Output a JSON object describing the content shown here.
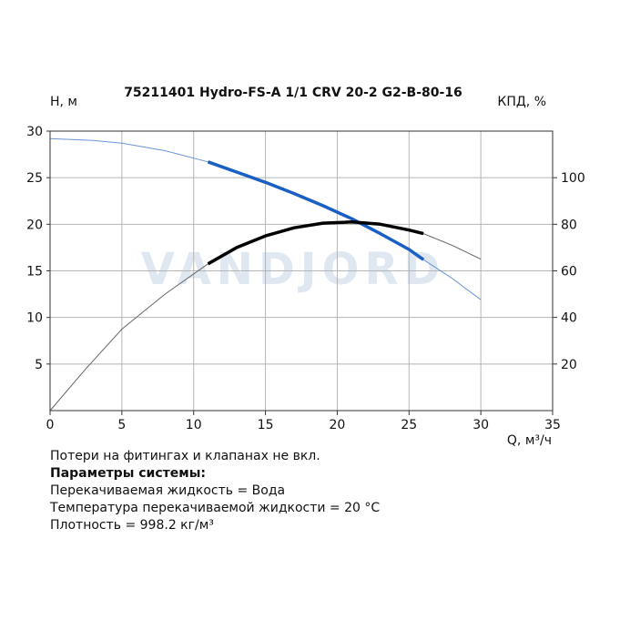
{
  "chart_data": {
    "type": "line",
    "title": "75211401 Hydro-FS-A 1/1 CRV 20-2 G2-B-80-16",
    "xlabel": "Q, м³/ч",
    "ylabel": "H, м",
    "y2label": "КПД, %",
    "watermark": "VANDJORD",
    "xlim": [
      0,
      35
    ],
    "ylim": [
      0,
      30
    ],
    "y2lim": [
      0,
      120
    ],
    "xticks": [
      "0",
      "5",
      "10",
      "15",
      "20",
      "25",
      "30",
      "35"
    ],
    "yticks": [
      "5",
      "10",
      "15",
      "20",
      "25",
      "30"
    ],
    "y2ticks": [
      "20",
      "40",
      "60",
      "80",
      "100"
    ],
    "grid": true,
    "series": [
      {
        "axis": "left",
        "color": "#1a5fc4",
        "x": [
          0,
          3,
          5,
          8,
          11,
          13,
          15,
          17,
          19,
          21,
          23,
          25,
          26,
          28,
          30
        ],
        "y": [
          29.2,
          29.0,
          28.7,
          27.9,
          26.7,
          25.6,
          24.5,
          23.3,
          22.0,
          20.6,
          19.0,
          17.3,
          16.2,
          14.2,
          11.9
        ],
        "highlight": [
          11,
          26
        ]
      },
      {
        "axis": "right",
        "color": "#000000",
        "x": [
          0,
          2.5,
          5,
          8,
          11,
          13,
          15,
          17,
          19,
          21,
          23,
          25,
          26,
          28,
          30
        ],
        "y": [
          0,
          18,
          35,
          50,
          63,
          70,
          75,
          78.5,
          80.5,
          81,
          80,
          77.5,
          76,
          71,
          65
        ],
        "highlight": [
          11,
          26
        ]
      }
    ]
  },
  "notes": {
    "line1": "Потери на фитингах и клапанах не вкл.",
    "heading": "Параметры системы:",
    "line2": "Перекачиваемая жидкость = Вода",
    "line3": "Температура перекачиваемой жидкости = 20 °C",
    "line4": "Плотность = 998.2 кг/м³"
  }
}
